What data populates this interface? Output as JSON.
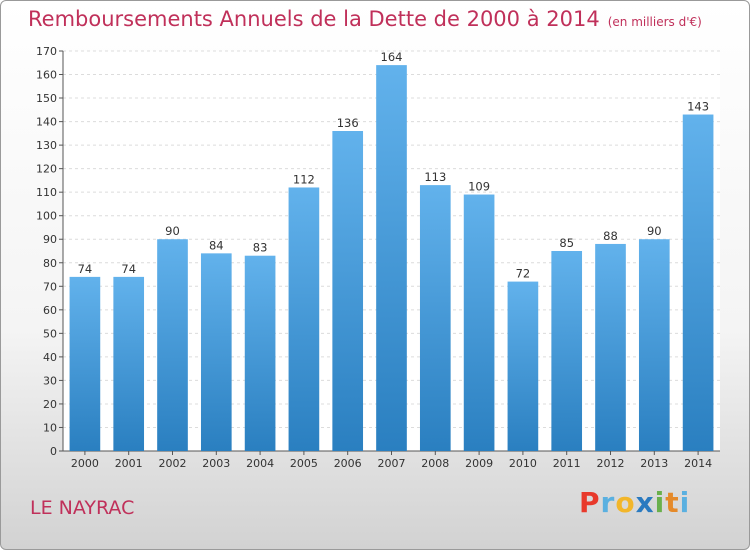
{
  "chart_data": {
    "type": "bar",
    "title": "Remboursements Annuels de la Dette de 2000 à 2014",
    "unit": "(en milliers d'€)",
    "categories": [
      "2000",
      "2001",
      "2002",
      "2003",
      "2004",
      "2005",
      "2006",
      "2007",
      "2008",
      "2009",
      "2010",
      "2011",
      "2012",
      "2013",
      "2014"
    ],
    "values": [
      74,
      74,
      90,
      84,
      83,
      112,
      136,
      164,
      113,
      109,
      72,
      85,
      88,
      90,
      143
    ],
    "ylim": [
      0,
      170
    ],
    "ytick_step": 10,
    "grid": true,
    "bar_color": "#5aaae6"
  },
  "commune": "LE NAYRAC",
  "logo": {
    "letters": [
      "P",
      "r",
      "o",
      "x",
      "i",
      "t",
      "i"
    ],
    "colors": [
      "#e8392b",
      "#5ab0e0",
      "#f2b62a",
      "#2a7ac0",
      "#6ab04c",
      "#e58a2a",
      "#5ab0e0"
    ]
  }
}
